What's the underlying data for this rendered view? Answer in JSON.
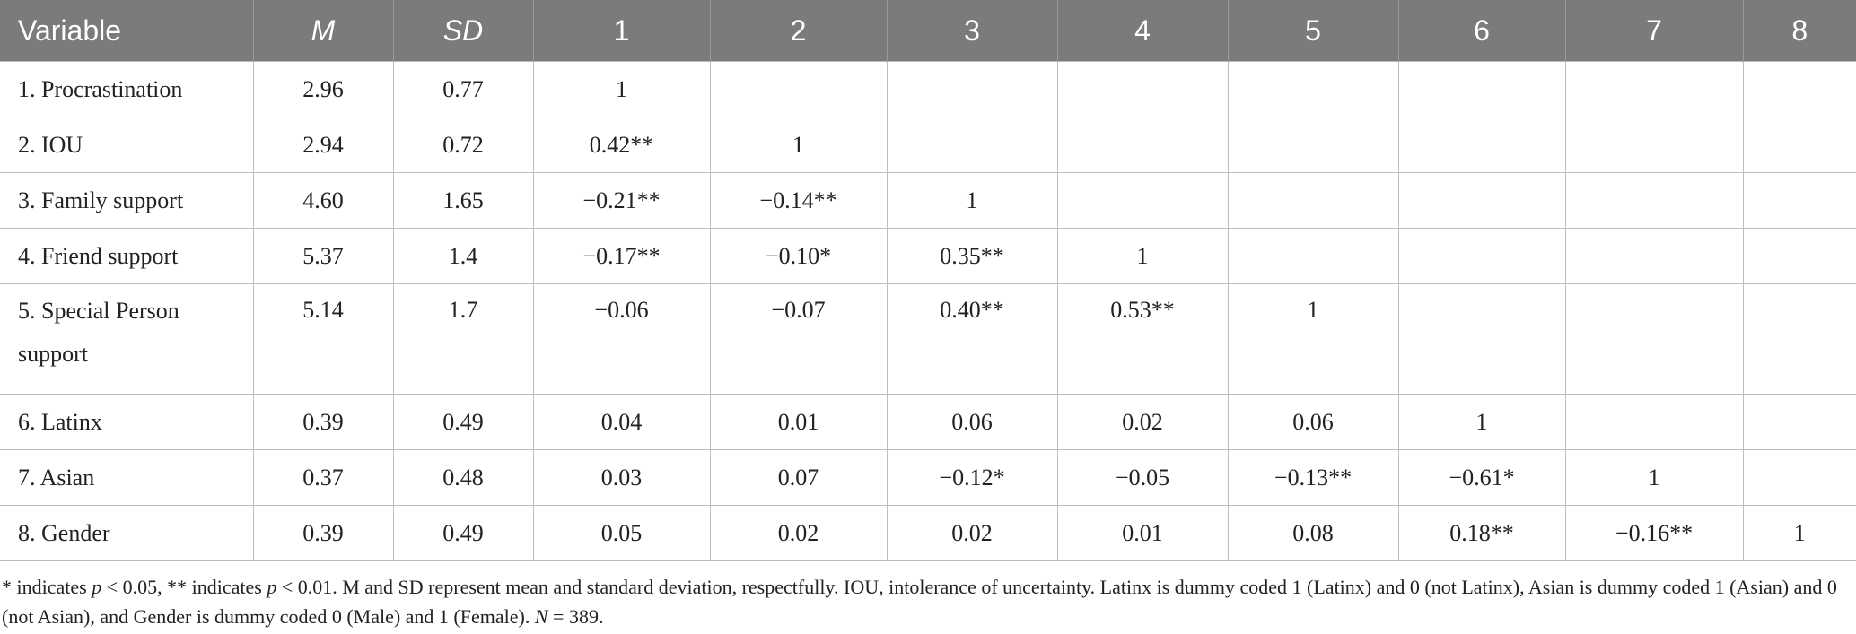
{
  "table": {
    "headers": [
      "Variable",
      "M",
      "SD",
      "1",
      "2",
      "3",
      "4",
      "5",
      "6",
      "7",
      "8"
    ],
    "rows": [
      [
        "1. Procrastination",
        "2.96",
        "0.77",
        "1",
        "",
        "",
        "",
        "",
        "",
        "",
        ""
      ],
      [
        "2. IOU",
        "2.94",
        "0.72",
        "0.42**",
        "1",
        "",
        "",
        "",
        "",
        "",
        ""
      ],
      [
        "3. Family support",
        "4.60",
        "1.65",
        "−0.21**",
        "−0.14**",
        "1",
        "",
        "",
        "",
        "",
        ""
      ],
      [
        "4. Friend support",
        "5.37",
        "1.4",
        "−0.17**",
        "−0.10*",
        "0.35**",
        "1",
        "",
        "",
        "",
        ""
      ],
      [
        "5. Special Person support",
        "5.14",
        "1.7",
        "−0.06",
        "−0.07",
        "0.40**",
        "0.53**",
        "1",
        "",
        "",
        ""
      ],
      [
        "6. Latinx",
        "0.39",
        "0.49",
        "0.04",
        "0.01",
        "0.06",
        "0.02",
        "0.06",
        "1",
        "",
        ""
      ],
      [
        "7. Asian",
        "0.37",
        "0.48",
        "0.03",
        "0.07",
        "−0.12*",
        "−0.05",
        "−0.13**",
        "−0.61*",
        "1",
        ""
      ],
      [
        "8. Gender",
        "0.39",
        "0.49",
        "0.05",
        "0.02",
        "0.02",
        "0.01",
        "0.08",
        "0.18**",
        "−0.16**",
        "1"
      ]
    ]
  },
  "note": {
    "p1": "* indicates ",
    "p1_var": "p",
    "p1_val": " < 0.05, ** indicates ",
    "p2_var": "p",
    "p2_val": " < 0.01. M and SD represent mean and standard deviation, respectfully. IOU, intolerance of uncertainty. Latinx is dummy coded 1 (Latinx) and 0 (not Latinx), Asian is dummy coded 1 (Asian) and 0 (not Asian), and Gender is dummy coded 0 (Male) and 1 (Female). ",
    "n_var": "N",
    "n_val": " = 389."
  },
  "colors": {
    "header_bg": "#7b7b7b",
    "header_text": "#ffffff",
    "grid": "#bdbdbd"
  }
}
